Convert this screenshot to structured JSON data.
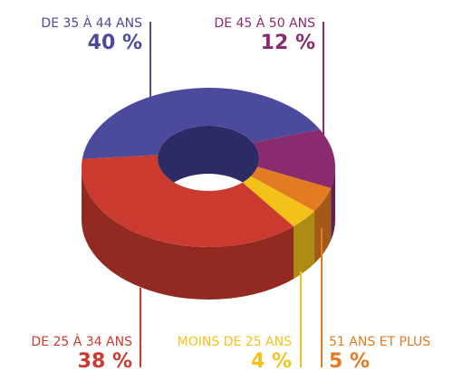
{
  "chart_data": {
    "type": "donut3d",
    "categories": [
      "DE 35 À 44 ANS",
      "DE 45 À 50 ANS",
      "51 ANS ET PLUS",
      "MOINS DE 25 ANS",
      "DE 25 À 34 ANS"
    ],
    "values": [
      40,
      12,
      5,
      4,
      38
    ],
    "value_labels": [
      "40 %",
      "12 %",
      "5 %",
      "4 %",
      "38 %"
    ],
    "colors": [
      "#4b4a9c",
      "#8b2b6f",
      "#e27b22",
      "#f2c21b",
      "#cb3a2e"
    ]
  }
}
